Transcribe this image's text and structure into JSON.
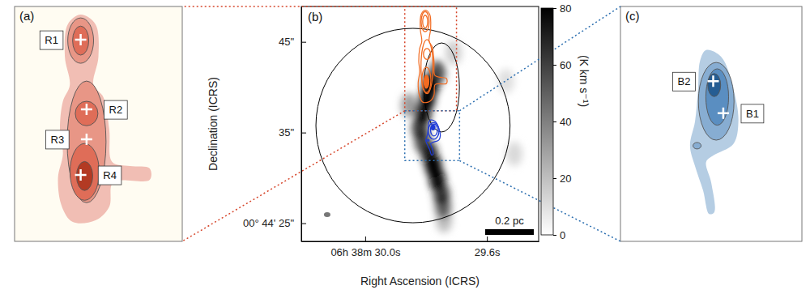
{
  "chart_data": [
    {
      "type": "contour",
      "title": "(a)",
      "xlim": [
        29.87,
        29.7
      ],
      "ylim": [
        37.4,
        48.9
      ],
      "tick_labels": false,
      "color": "#d6452a",
      "outline": {
        "x": [
          29.803,
          29.788,
          29.785,
          29.79,
          29.78,
          29.774,
          29.771,
          29.753,
          29.733,
          29.733,
          29.77,
          29.774,
          29.788,
          29.811,
          29.822,
          29.826,
          29.821,
          29.824,
          29.821,
          29.814,
          29.819,
          29.816
        ],
        "y": [
          48.5,
          48.03,
          46.44,
          45.05,
          44.46,
          42.87,
          41.29,
          41.09,
          40.97,
          40.41,
          40.29,
          39.1,
          38.43,
          38.35,
          39.1,
          40.49,
          41.68,
          42.87,
          44.26,
          45.05,
          46.44,
          48.03
        ]
      },
      "contours": [
        {
          "level": 1,
          "x": 29.803,
          "y": 47.23,
          "rx": 0.0131,
          "ry": 1.11
        },
        {
          "level": 1,
          "x": 29.797,
          "y": 42.27,
          "rx": 0.0197,
          "ry": 2.98
        },
        {
          "level": 2,
          "x": 29.803,
          "y": 47.23,
          "rx": 0.0082,
          "ry": 0.71
        },
        {
          "level": 2,
          "x": 29.797,
          "y": 43.66,
          "rx": 0.0115,
          "ry": 0.6
        },
        {
          "level": 2,
          "x": 29.799,
          "y": 40.8,
          "rx": 0.0148,
          "ry": 1.39
        },
        {
          "level": 3,
          "x": 29.799,
          "y": 40.6,
          "rx": 0.0082,
          "ry": 0.71
        }
      ],
      "sources": [
        {
          "name": "R1",
          "x": 29.803,
          "y": 47.27
        },
        {
          "name": "R2",
          "x": 29.797,
          "y": 43.86
        },
        {
          "name": "R3",
          "x": 29.797,
          "y": 42.4
        },
        {
          "name": "R4",
          "x": 29.803,
          "y": 40.65
        }
      ]
    },
    {
      "type": "heatmap",
      "title": "(b)",
      "xlabel": "Right Ascension (ICRS)",
      "ylabel": "Declination (ICRS)",
      "xlim": [
        30.21,
        29.43
      ],
      "ylim": [
        23.0,
        48.9
      ],
      "xticks": [
        {
          "value": 30.0,
          "label": "06h 38m 30.0s"
        },
        {
          "value": 29.6,
          "label": "29.6s"
        }
      ],
      "yticks": [
        {
          "value": 45,
          "label": "45\""
        },
        {
          "value": 35,
          "label": "35\""
        },
        {
          "value": 25,
          "label": "00° 44' 25\""
        }
      ],
      "colors": [
        "#f26b21",
        "#1f3bd6"
      ],
      "emission": {
        "x": [
          29.763,
          29.784,
          29.797,
          29.811,
          29.821,
          29.811,
          29.789,
          29.776,
          29.763,
          29.749,
          29.744,
          29.741,
          29.71,
          29.537,
          29.51,
          29.856
        ],
        "y": [
          41.58,
          40.24,
          38.72,
          37.11,
          35.5,
          33.99,
          32.65,
          31.31,
          29.79,
          28.18,
          26.84,
          25.32,
          43.81,
          40.68,
          32.65,
          38.01
        ],
        "values": [
          55,
          80,
          80,
          75,
          60,
          55,
          70,
          80,
          75,
          60,
          45,
          20,
          15,
          10,
          12,
          30
        ]
      },
      "colorbar": {
        "lim": [
          0,
          80
        ],
        "ticks": [
          0,
          20,
          40,
          60,
          80
        ],
        "label": "(K km s⁻¹)"
      },
      "regions": [
        {
          "x": 29.843,
          "y": 35.77,
          "rx": 0.319,
          "ry": 10.72
        },
        {
          "x": 29.749,
          "y": 39.97,
          "rx": 0.0586,
          "ry": 4.91
        }
      ],
      "beam": {
        "x": 30.125,
        "y": 25.95,
        "rx": 0.0106,
        "ry": 0.27
      },
      "scale_bar": {
        "label": "0.2 pc",
        "length": 0.16
      }
    },
    {
      "type": "contour",
      "title": "(c)",
      "xlim": [
        29.87,
        29.69
      ],
      "ylim": [
        31.9,
        37.4
      ],
      "tick_labels": false,
      "color": "#2c6fb0",
      "outline": {
        "x": [
          29.785,
          29.77,
          29.758,
          29.753,
          29.758,
          29.778,
          29.785,
          29.78,
          29.777,
          29.782,
          29.788,
          29.796,
          29.801,
          29.796,
          29.793,
          29.791
        ],
        "y": [
          36.38,
          36.22,
          35.47,
          34.71,
          34.18,
          33.91,
          33.76,
          33.28,
          32.58,
          32.54,
          33.09,
          33.66,
          34.14,
          34.71,
          35.47,
          36.13
        ]
      },
      "contours": [
        {
          "level": 1,
          "x": 29.775,
          "y": 35.18,
          "rx": 0.0177,
          "ry": 0.91
        },
        {
          "level": 1,
          "x": 29.794,
          "y": 34.14,
          "rx": 0.004,
          "ry": 0.076
        },
        {
          "level": 2,
          "x": 29.774,
          "y": 35.28,
          "rx": 0.0113,
          "ry": 0.66
        },
        {
          "level": 3,
          "x": 29.777,
          "y": 35.56,
          "rx": 0.0064,
          "ry": 0.27
        }
      ],
      "sources": [
        {
          "name": "B2",
          "x": 29.778,
          "y": 35.65
        },
        {
          "name": "B1",
          "x": 29.768,
          "y": 34.9
        }
      ]
    }
  ]
}
